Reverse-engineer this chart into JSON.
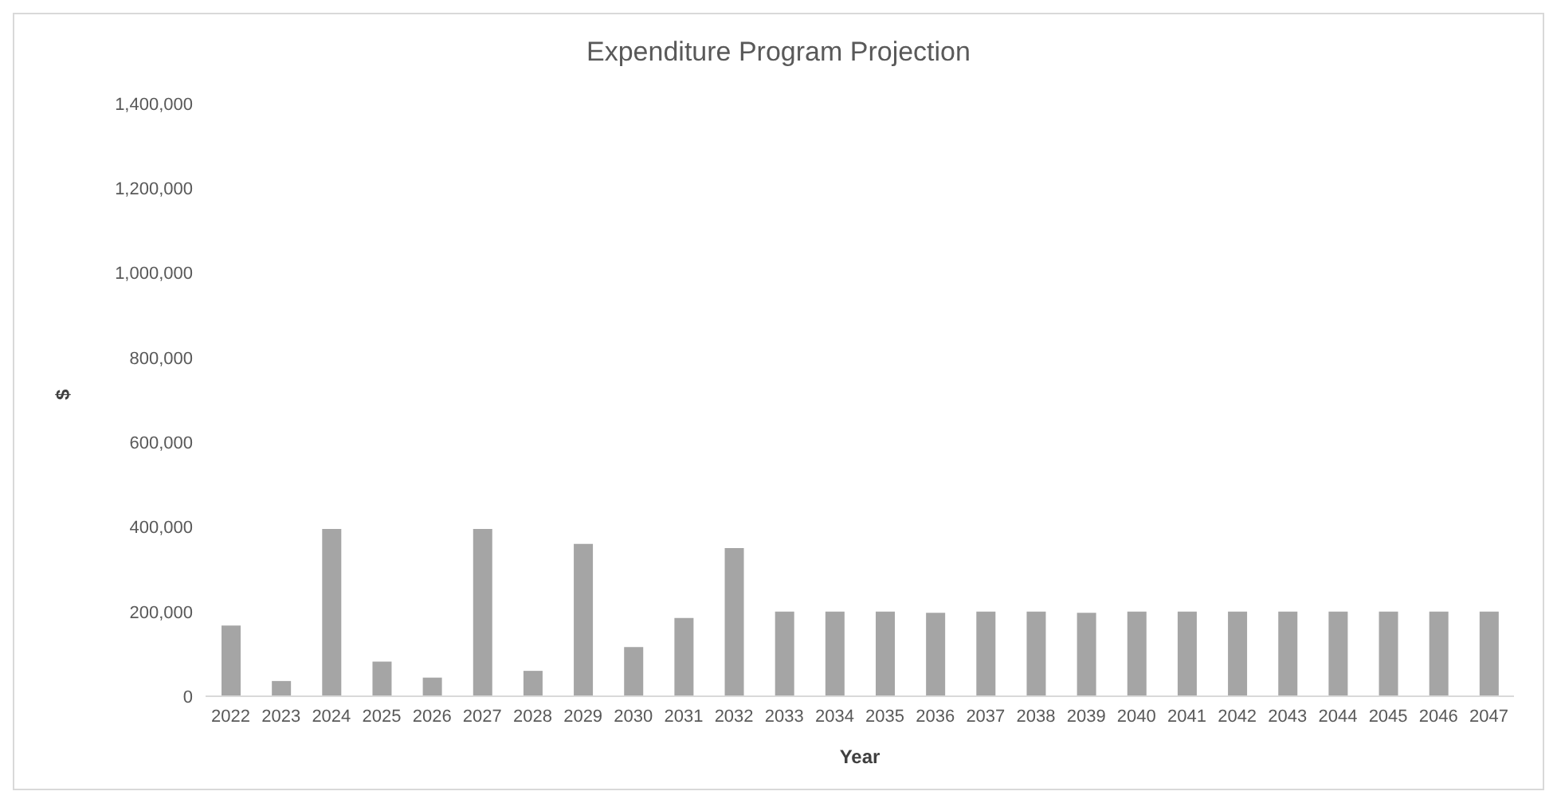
{
  "chart_data": {
    "type": "bar",
    "title": "Expenditure Program Projection",
    "xlabel": "Year",
    "ylabel": "$",
    "categories": [
      "2022",
      "2023",
      "2024",
      "2025",
      "2026",
      "2027",
      "2028",
      "2029",
      "2030",
      "2031",
      "2032",
      "2033",
      "2034",
      "2035",
      "2036",
      "2037",
      "2038",
      "2039",
      "2040",
      "2041",
      "2042",
      "2043",
      "2044",
      "2045",
      "2046",
      "2047"
    ],
    "values": [
      167000,
      36000,
      395000,
      82000,
      44000,
      395000,
      60000,
      360000,
      116000,
      185000,
      350000,
      200000,
      200000,
      200000,
      197000,
      200000,
      200000,
      197000,
      200000,
      200000,
      200000,
      200000,
      200000,
      200000,
      200000,
      200000
    ],
    "color": "#a5a5a5",
    "ylim": [
      0,
      1400000
    ],
    "yticks": [
      0,
      {
        "value": 200000,
        "label": "200,000"
      },
      {
        "value": 400000,
        "label": "400,000"
      },
      {
        "value": 600000,
        "label": "600,000"
      },
      {
        "value": 800000,
        "label": "800,000"
      },
      {
        "value": 1000000,
        "label": "1,000,000"
      },
      {
        "value": 1200000,
        "label": "1,200,000"
      },
      {
        "value": 1400000,
        "label": "1,400,000"
      }
    ],
    "grid": false,
    "legend": false
  }
}
